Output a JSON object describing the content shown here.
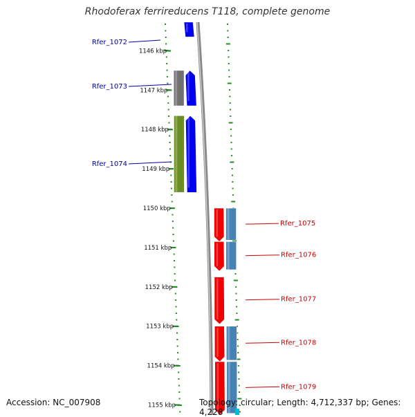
{
  "title": "Rhodoferax ferrireducens T118, complete genome",
  "accession_label": "Accession: NC_007908",
  "topology_label": "Topology: circular; Length: 4,712,337 bp; Genes: 4,228",
  "scale": {
    "start_kbp": 1145.15,
    "end_kbp": 1155.25,
    "tick_labels": [
      "1146 kbp",
      "1147 kbp",
      "1148 kbp",
      "1149 kbp",
      "1150 kbp",
      "1151 kbp",
      "1152 kbp",
      "1153 kbp",
      "1154 kbp",
      "1155 kbp"
    ]
  },
  "colors": {
    "gene_plus": "#0000ee",
    "gene_minus": "#ee0000",
    "cds_plus_grey": "#707070",
    "cds_plus_green": "#6b8e23",
    "cds_minus_steel": "#4682b4",
    "tick_green": "#228b22",
    "backbone": "#8a8a8a",
    "label_plus": "#0000aa",
    "label_minus": "#cc0000"
  },
  "genes": [
    {
      "id": "Rfer_1072",
      "strand": "+",
      "start_kbp": 1145.15,
      "end_kbp": 1145.65,
      "cds_color": "none"
    },
    {
      "id": "Rfer_1073",
      "strand": "+",
      "start_kbp": 1146.5,
      "end_kbp": 1147.4,
      "cds_color": "cds_plus_grey"
    },
    {
      "id": "Rfer_1074",
      "strand": "+",
      "start_kbp": 1147.65,
      "end_kbp": 1149.6,
      "cds_color": "cds_plus_green"
    },
    {
      "id": "Rfer_1075",
      "strand": "-",
      "start_kbp": 1150.0,
      "end_kbp": 1150.85,
      "cds_color": "cds_minus_steel"
    },
    {
      "id": "Rfer_1076",
      "strand": "-",
      "start_kbp": 1150.85,
      "end_kbp": 1151.6,
      "cds_color": "cds_minus_steel"
    },
    {
      "id": "Rfer_1077",
      "strand": "-",
      "start_kbp": 1151.75,
      "end_kbp": 1152.95,
      "cds_color": "none"
    },
    {
      "id": "Rfer_1078",
      "strand": "-",
      "start_kbp": 1153.0,
      "end_kbp": 1153.9,
      "cds_color": "cds_minus_steel"
    },
    {
      "id": "Rfer_1079",
      "strand": "-",
      "start_kbp": 1153.9,
      "end_kbp": 1155.25,
      "cds_color": "cds_minus_steel"
    }
  ]
}
